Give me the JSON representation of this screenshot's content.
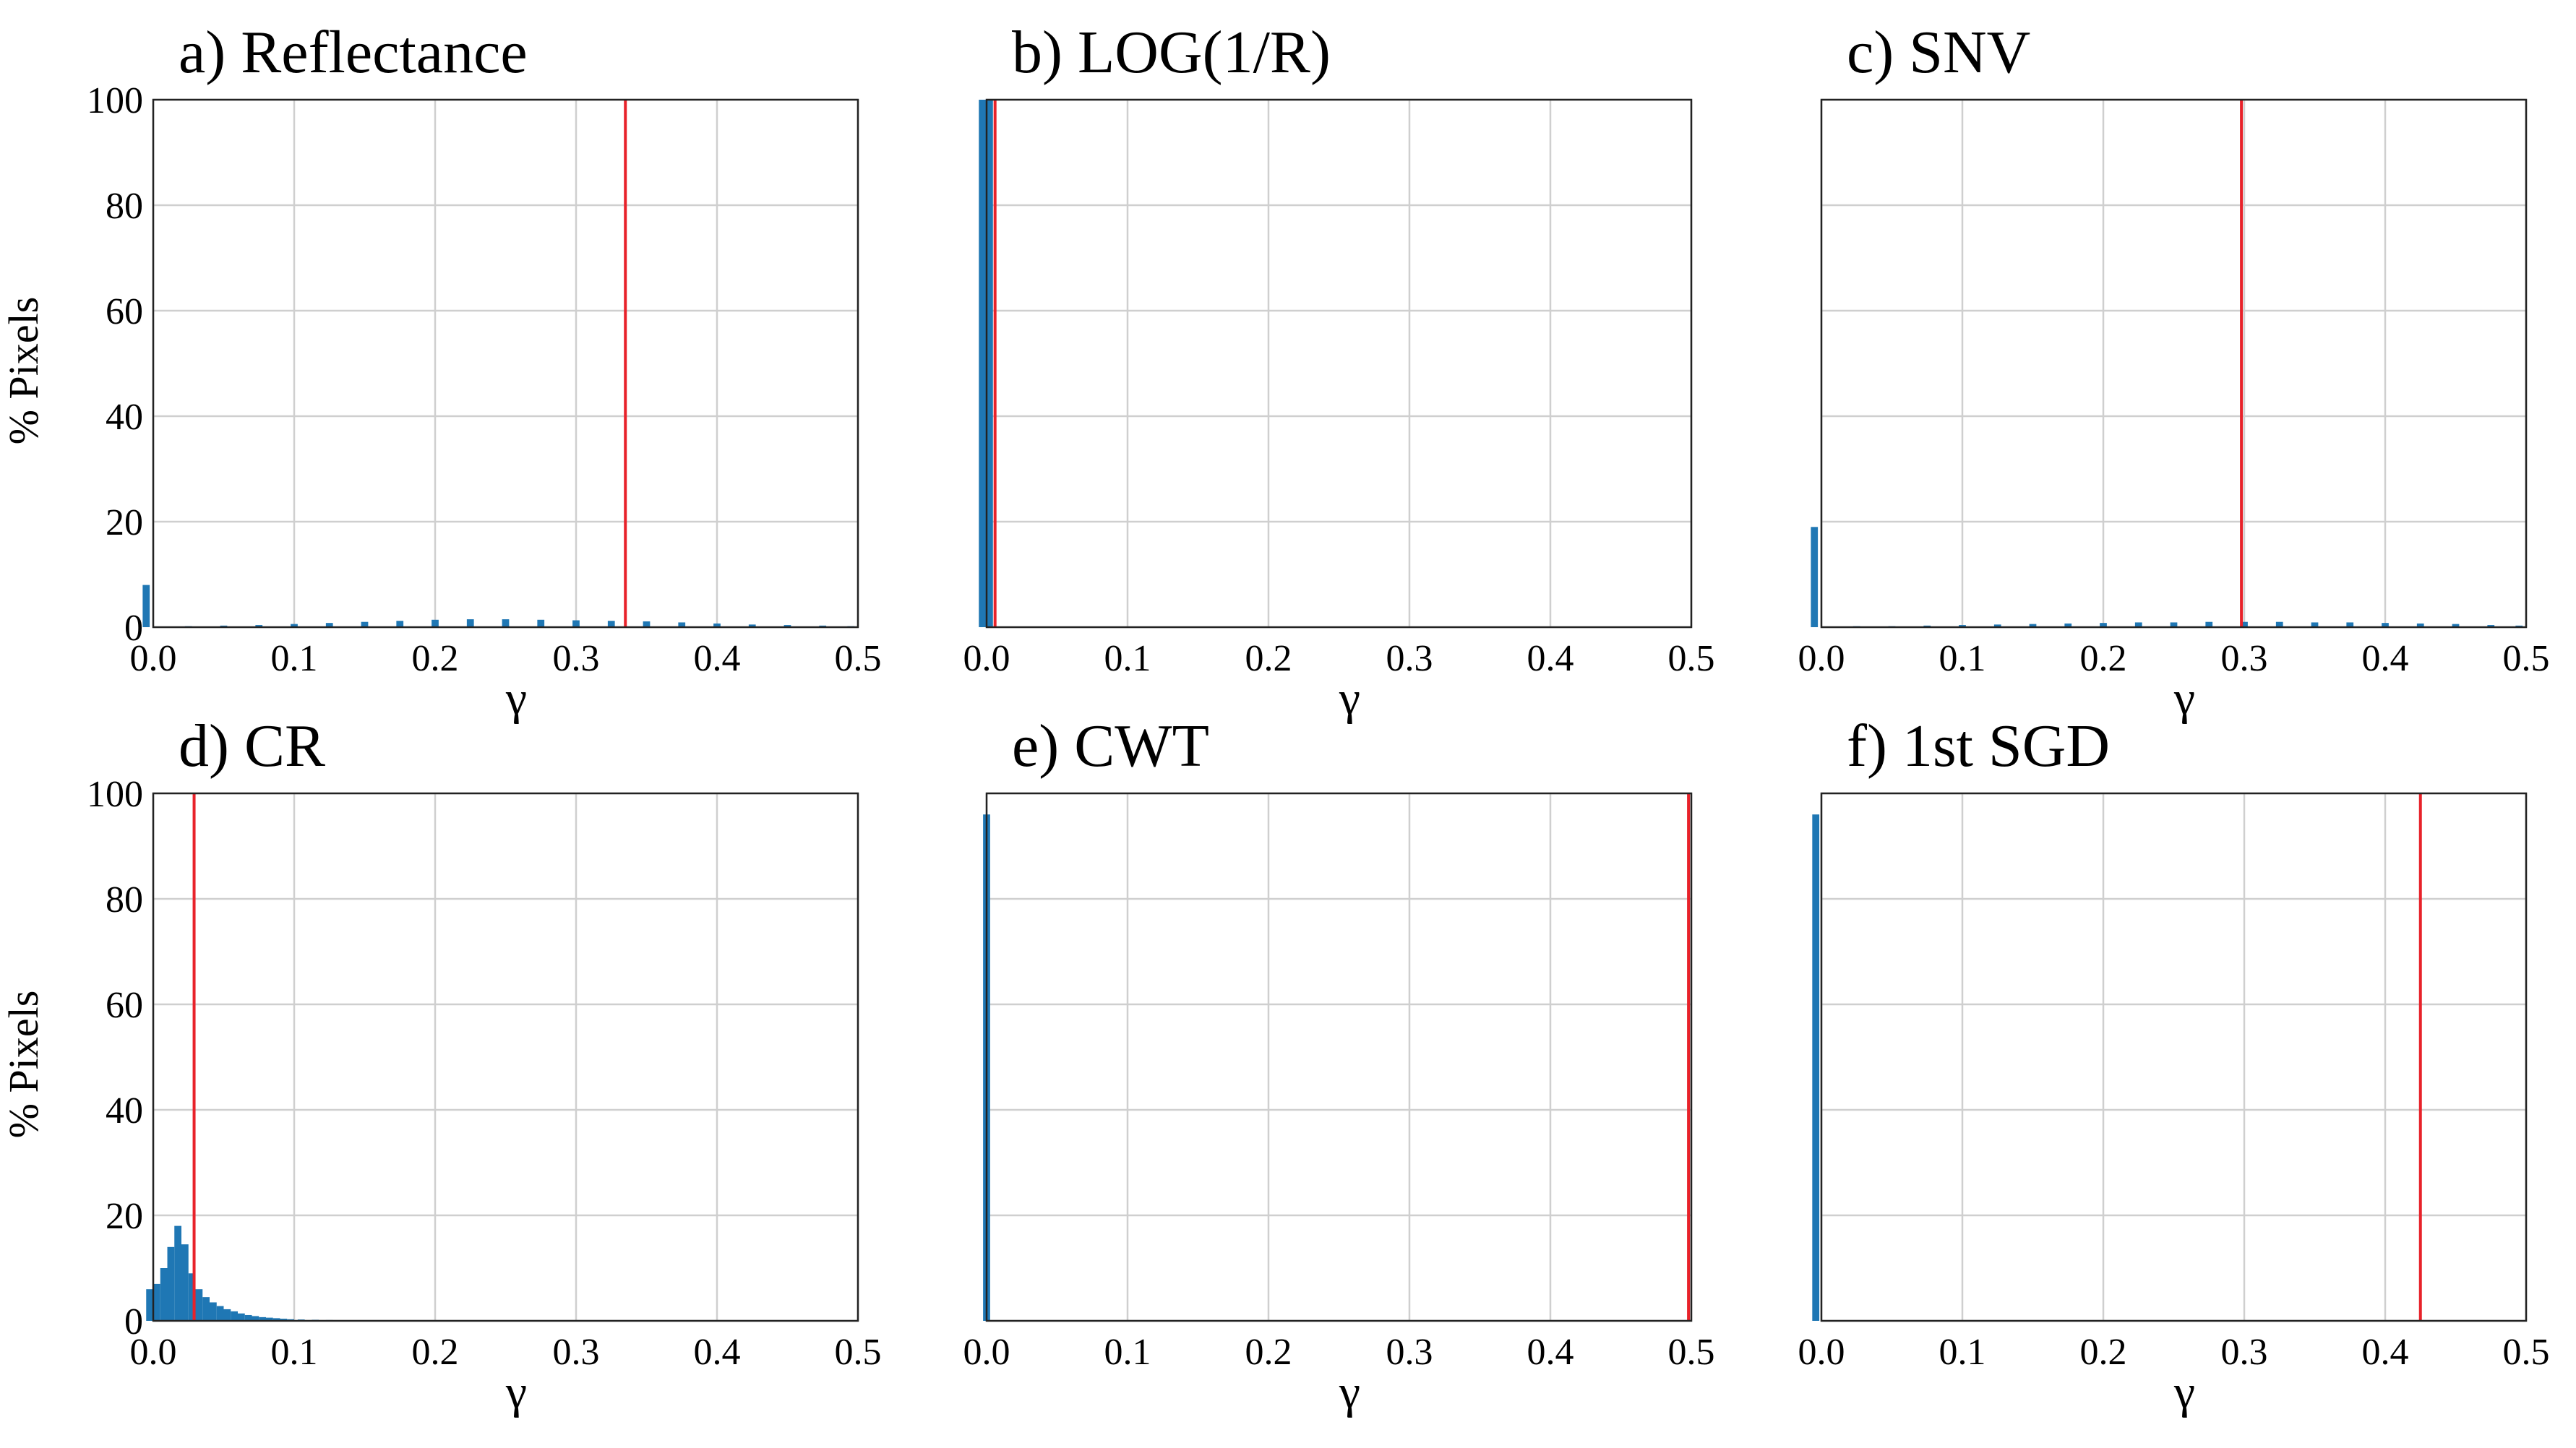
{
  "colors": {
    "bar": "#1f77b4",
    "threshold": "#e8222a",
    "grid": "#cfcfcf"
  },
  "chart_data": [
    {
      "type": "bar",
      "title": "a) Reflectance",
      "xlabel": "γ",
      "ylabel": "% Pixels",
      "xlim": [
        0.0,
        0.5
      ],
      "ylim": [
        0,
        100
      ],
      "xticks": [
        "0.0",
        "0.1",
        "0.2",
        "0.3",
        "0.4",
        "0.5"
      ],
      "yticks": [
        "0",
        "20",
        "40",
        "60",
        "80",
        "100"
      ],
      "grid": true,
      "bin_width": 0.005,
      "bins": [
        [
          -0.005,
          8.0
        ],
        [
          0.025,
          0.2
        ],
        [
          0.05,
          0.3
        ],
        [
          0.075,
          0.4
        ],
        [
          0.1,
          0.6
        ],
        [
          0.125,
          0.8
        ],
        [
          0.15,
          1.0
        ],
        [
          0.175,
          1.2
        ],
        [
          0.2,
          1.4
        ],
        [
          0.225,
          1.5
        ],
        [
          0.25,
          1.5
        ],
        [
          0.275,
          1.4
        ],
        [
          0.3,
          1.3
        ],
        [
          0.325,
          1.2
        ],
        [
          0.35,
          1.1
        ],
        [
          0.375,
          0.9
        ],
        [
          0.4,
          0.7
        ],
        [
          0.425,
          0.5
        ],
        [
          0.45,
          0.4
        ],
        [
          0.475,
          0.3
        ],
        [
          0.495,
          0.2
        ]
      ],
      "threshold": 0.335
    },
    {
      "type": "bar",
      "title": "b) LOG(1/R)",
      "xlabel": "γ",
      "ylabel": "",
      "xlim": [
        0.0,
        0.5
      ],
      "ylim": [
        0,
        100
      ],
      "xticks": [
        "0.0",
        "0.1",
        "0.2",
        "0.3",
        "0.4",
        "0.5"
      ],
      "yticks": [],
      "grid": true,
      "bin_width": 0.005,
      "bins": [
        [
          -0.003,
          100
        ],
        [
          0.002,
          100
        ]
      ],
      "threshold": 0.006
    },
    {
      "type": "bar",
      "title": "c) SNV",
      "xlabel": "γ",
      "ylabel": "",
      "xlim": [
        0.0,
        0.5
      ],
      "ylim": [
        0,
        100
      ],
      "xticks": [
        "0.0",
        "0.1",
        "0.2",
        "0.3",
        "0.4",
        "0.5"
      ],
      "yticks": [],
      "grid": true,
      "bin_width": 0.005,
      "bins": [
        [
          -0.005,
          19.0
        ],
        [
          0.025,
          0.2
        ],
        [
          0.05,
          0.2
        ],
        [
          0.075,
          0.3
        ],
        [
          0.1,
          0.4
        ],
        [
          0.125,
          0.5
        ],
        [
          0.15,
          0.6
        ],
        [
          0.175,
          0.7
        ],
        [
          0.2,
          0.8
        ],
        [
          0.225,
          0.9
        ],
        [
          0.25,
          0.9
        ],
        [
          0.275,
          1.0
        ],
        [
          0.3,
          1.0
        ],
        [
          0.325,
          1.0
        ],
        [
          0.35,
          0.9
        ],
        [
          0.375,
          0.9
        ],
        [
          0.4,
          0.8
        ],
        [
          0.425,
          0.7
        ],
        [
          0.45,
          0.6
        ],
        [
          0.475,
          0.4
        ],
        [
          0.495,
          0.3
        ]
      ],
      "threshold": 0.298
    },
    {
      "type": "bar",
      "title": "d) CR",
      "xlabel": "γ",
      "ylabel": "% Pixels",
      "xlim": [
        0.0,
        0.5
      ],
      "ylim": [
        0,
        100
      ],
      "xticks": [
        "0.0",
        "0.1",
        "0.2",
        "0.3",
        "0.4",
        "0.5"
      ],
      "yticks": [
        "0",
        "20",
        "40",
        "60",
        "80",
        "100"
      ],
      "grid": true,
      "bin_width": 0.005,
      "bins": [
        [
          -0.0025,
          6.0
        ],
        [
          0.0025,
          7.0
        ],
        [
          0.0075,
          10.0
        ],
        [
          0.0125,
          14.0
        ],
        [
          0.0175,
          18.0
        ],
        [
          0.0225,
          14.5
        ],
        [
          0.0275,
          9.0
        ],
        [
          0.0325,
          6.0
        ],
        [
          0.0375,
          4.5
        ],
        [
          0.0425,
          3.5
        ],
        [
          0.0475,
          2.8
        ],
        [
          0.0525,
          2.2
        ],
        [
          0.0575,
          1.8
        ],
        [
          0.0625,
          1.4
        ],
        [
          0.0675,
          1.1
        ],
        [
          0.0725,
          0.9
        ],
        [
          0.0775,
          0.7
        ],
        [
          0.0825,
          0.6
        ],
        [
          0.0875,
          0.5
        ],
        [
          0.0925,
          0.4
        ],
        [
          0.0975,
          0.3
        ],
        [
          0.105,
          0.25
        ],
        [
          0.115,
          0.2
        ],
        [
          0.125,
          0.15
        ],
        [
          0.14,
          0.1
        ],
        [
          0.16,
          0.05
        ]
      ],
      "threshold": 0.029
    },
    {
      "type": "bar",
      "title": "e) CWT",
      "xlabel": "γ",
      "ylabel": "",
      "xlim": [
        0.0,
        0.5
      ],
      "ylim": [
        0,
        100
      ],
      "xticks": [
        "0.0",
        "0.1",
        "0.2",
        "0.3",
        "0.4",
        "0.5"
      ],
      "yticks": [],
      "grid": true,
      "bin_width": 0.005,
      "bins": [
        [
          0.0,
          96.0
        ]
      ],
      "threshold": 0.498
    },
    {
      "type": "bar",
      "title": "f) 1st SGD",
      "xlabel": "γ",
      "ylabel": "",
      "xlim": [
        0.0,
        0.5
      ],
      "ylim": [
        0,
        100
      ],
      "xticks": [
        "0.0",
        "0.1",
        "0.2",
        "0.3",
        "0.4",
        "0.5"
      ],
      "yticks": [],
      "grid": true,
      "bin_width": 0.005,
      "bins": [
        [
          -0.004,
          96.0
        ]
      ],
      "threshold": 0.425
    }
  ]
}
